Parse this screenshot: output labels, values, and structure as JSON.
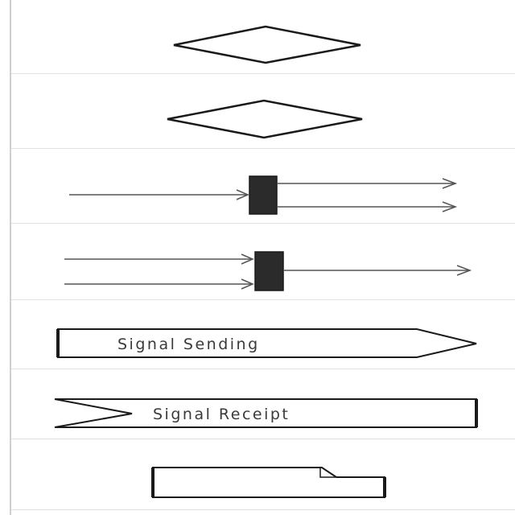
{
  "palette": {
    "items": [
      {
        "id": "decision-node",
        "shape": "diamond"
      },
      {
        "id": "merge-node",
        "shape": "diamond"
      },
      {
        "id": "fork-node",
        "shape": "fork-bar"
      },
      {
        "id": "join-node",
        "shape": "join-bar"
      },
      {
        "id": "signal-sending",
        "shape": "pentagon-arrow",
        "label": "Signal Sending"
      },
      {
        "id": "signal-receipt",
        "shape": "notched-rectangle",
        "label": "Signal Receipt"
      },
      {
        "id": "note",
        "shape": "folded-corner-rectangle"
      }
    ]
  },
  "colors": {
    "stroke": "#1a1a1a",
    "bar_fill": "#2b2b2b",
    "arrow": "#555555",
    "divider": "#e2e2e2",
    "border": "#cfcfcf"
  }
}
